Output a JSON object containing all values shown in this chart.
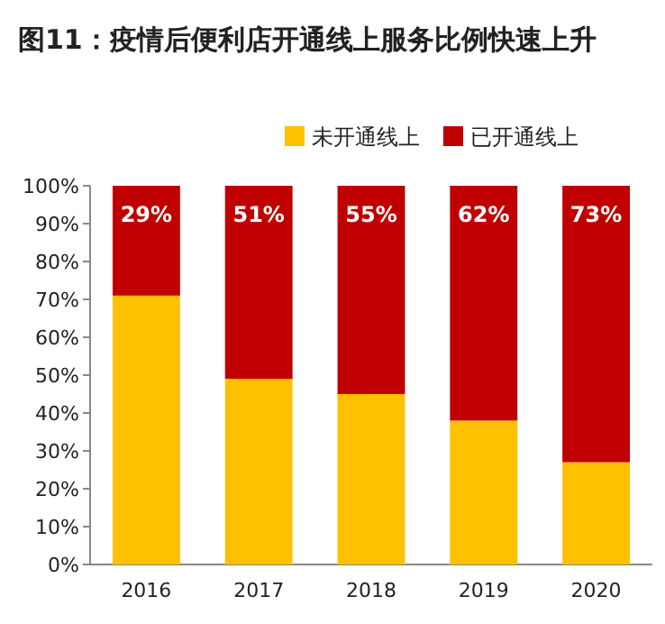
{
  "chart_data": {
    "type": "bar",
    "title": "图11：疫情后便利店开通线上服务比例快速上升",
    "categories": [
      "2016",
      "2017",
      "2018",
      "2019",
      "2020"
    ],
    "stacked": true,
    "legend": "top",
    "series": [
      {
        "name": "未开通线上",
        "color": "#ffc000",
        "values": [
          71,
          49,
          45,
          38,
          27
        ]
      },
      {
        "name": "已开通线上",
        "color": "#c00000",
        "values": [
          29,
          51,
          55,
          62,
          73
        ],
        "value_labels": [
          "29%",
          "51%",
          "55%",
          "62%",
          "73%"
        ]
      }
    ],
    "ylim": [
      0,
      100
    ],
    "yticks": [
      {
        "value": 0,
        "label": "0%"
      },
      {
        "value": 10,
        "label": "10%"
      },
      {
        "value": 20,
        "label": "20%"
      },
      {
        "value": 30,
        "label": "30%"
      },
      {
        "value": 40,
        "label": "40%"
      },
      {
        "value": 50,
        "label": "50%"
      },
      {
        "value": 60,
        "label": "60%"
      },
      {
        "value": 70,
        "label": "70%"
      },
      {
        "value": 80,
        "label": "80%"
      },
      {
        "value": 90,
        "label": "90%"
      },
      {
        "value": 100,
        "label": "100%"
      }
    ]
  }
}
